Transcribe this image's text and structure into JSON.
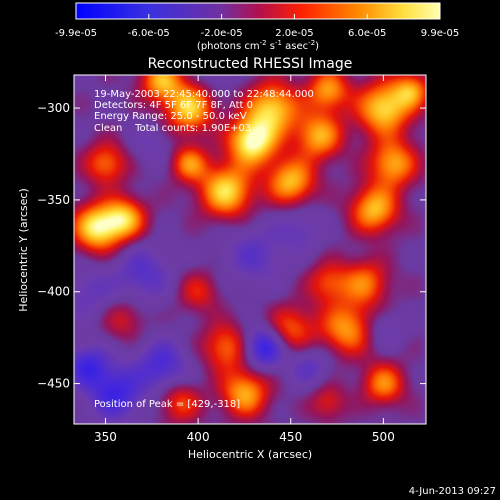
{
  "chart_data": {
    "type": "heatmap",
    "title": "Reconstructed RHESSI Image",
    "xlabel": "Heliocentric X (arcsec)",
    "ylabel": "Heliocentric Y (arcsec)",
    "xlim": [
      333,
      523
    ],
    "ylim": [
      -472,
      -282
    ],
    "xticks": [
      350,
      400,
      450,
      500
    ],
    "yticks": [
      -300,
      -350,
      -400,
      -450
    ],
    "colorbar": {
      "range": [
        -9.9e-05,
        9.9e-05
      ],
      "ticks": [
        "-9.9e-05",
        "-6.0e-05",
        "-2.0e-05",
        "2.0e-05",
        "6.0e-05",
        "9.9e-05"
      ],
      "unit_prefix": "(photons cm",
      "unit_exp1": "-2",
      "unit_mid": " s",
      "unit_exp2": "-1",
      "unit_mid2": " asec",
      "unit_exp3": "-2",
      "unit_suffix": ")"
    },
    "annotations": [
      "19-May-2003 22:45:40.000 to 22:48:44.000",
      "Detectors: 4F 5F 6F 7F 8F, Att 0",
      "Energy Range: 25.0 - 50.0 keV",
      "Clean    Total counts: 1.90E+03"
    ],
    "peak_label": "Position of Peak = [429,-318]",
    "peak": [
      429,
      -318
    ],
    "grid": false,
    "colors": {
      "negative": "#2020ff",
      "zero": "#6a3aa0",
      "positive_mid": "#ff3000",
      "positive_high": "#ffff60"
    },
    "blobs": [
      {
        "x": 429,
        "y": -318,
        "a": 1.0,
        "s": 9
      },
      {
        "x": 440,
        "y": -300,
        "a": 0.8,
        "s": 10
      },
      {
        "x": 415,
        "y": -345,
        "a": 0.85,
        "s": 10
      },
      {
        "x": 450,
        "y": -340,
        "a": 0.75,
        "s": 9
      },
      {
        "x": 465,
        "y": -315,
        "a": 0.7,
        "s": 9
      },
      {
        "x": 470,
        "y": -290,
        "a": 0.65,
        "s": 8
      },
      {
        "x": 395,
        "y": -300,
        "a": 0.8,
        "s": 9
      },
      {
        "x": 380,
        "y": -285,
        "a": 0.7,
        "s": 8
      },
      {
        "x": 350,
        "y": -330,
        "a": 0.55,
        "s": 8
      },
      {
        "x": 345,
        "y": -365,
        "a": 0.9,
        "s": 9
      },
      {
        "x": 360,
        "y": -360,
        "a": 0.75,
        "s": 8
      },
      {
        "x": 395,
        "y": -330,
        "a": 0.6,
        "s": 7
      },
      {
        "x": 500,
        "y": -300,
        "a": 0.85,
        "s": 10
      },
      {
        "x": 505,
        "y": -330,
        "a": 0.7,
        "s": 9
      },
      {
        "x": 495,
        "y": -355,
        "a": 0.75,
        "s": 9
      },
      {
        "x": 515,
        "y": -290,
        "a": 0.6,
        "s": 7
      },
      {
        "x": 490,
        "y": -395,
        "a": 0.55,
        "s": 9
      },
      {
        "x": 470,
        "y": -395,
        "a": 0.45,
        "s": 8
      },
      {
        "x": 450,
        "y": -420,
        "a": 0.5,
        "s": 9
      },
      {
        "x": 480,
        "y": -420,
        "a": 0.65,
        "s": 10
      },
      {
        "x": 415,
        "y": -430,
        "a": 0.55,
        "s": 9
      },
      {
        "x": 425,
        "y": -455,
        "a": 0.7,
        "s": 9
      },
      {
        "x": 500,
        "y": -450,
        "a": 0.6,
        "s": 8
      },
      {
        "x": 470,
        "y": -460,
        "a": 0.35,
        "s": 7
      },
      {
        "x": 390,
        "y": -460,
        "a": 0.45,
        "s": 8
      },
      {
        "x": 400,
        "y": -400,
        "a": 0.35,
        "s": 8
      },
      {
        "x": 360,
        "y": -415,
        "a": 0.3,
        "s": 8
      },
      {
        "x": 370,
        "y": -390,
        "a": -0.35,
        "s": 11
      },
      {
        "x": 340,
        "y": -400,
        "a": -0.25,
        "s": 10
      },
      {
        "x": 430,
        "y": -380,
        "a": -0.3,
        "s": 12
      },
      {
        "x": 455,
        "y": -365,
        "a": -0.25,
        "s": 9
      },
      {
        "x": 435,
        "y": -430,
        "a": -0.65,
        "s": 8
      },
      {
        "x": 380,
        "y": -440,
        "a": -0.45,
        "s": 10
      },
      {
        "x": 355,
        "y": -455,
        "a": -0.55,
        "s": 10
      },
      {
        "x": 340,
        "y": -440,
        "a": -0.5,
        "s": 8
      },
      {
        "x": 460,
        "y": -440,
        "a": -0.3,
        "s": 8
      },
      {
        "x": 500,
        "y": -420,
        "a": -0.25,
        "s": 7
      },
      {
        "x": 375,
        "y": -320,
        "a": -0.2,
        "s": 8
      },
      {
        "x": 410,
        "y": -280,
        "a": -0.2,
        "s": 7
      }
    ]
  },
  "footer_timestamp": "4-Jun-2013 09:27"
}
